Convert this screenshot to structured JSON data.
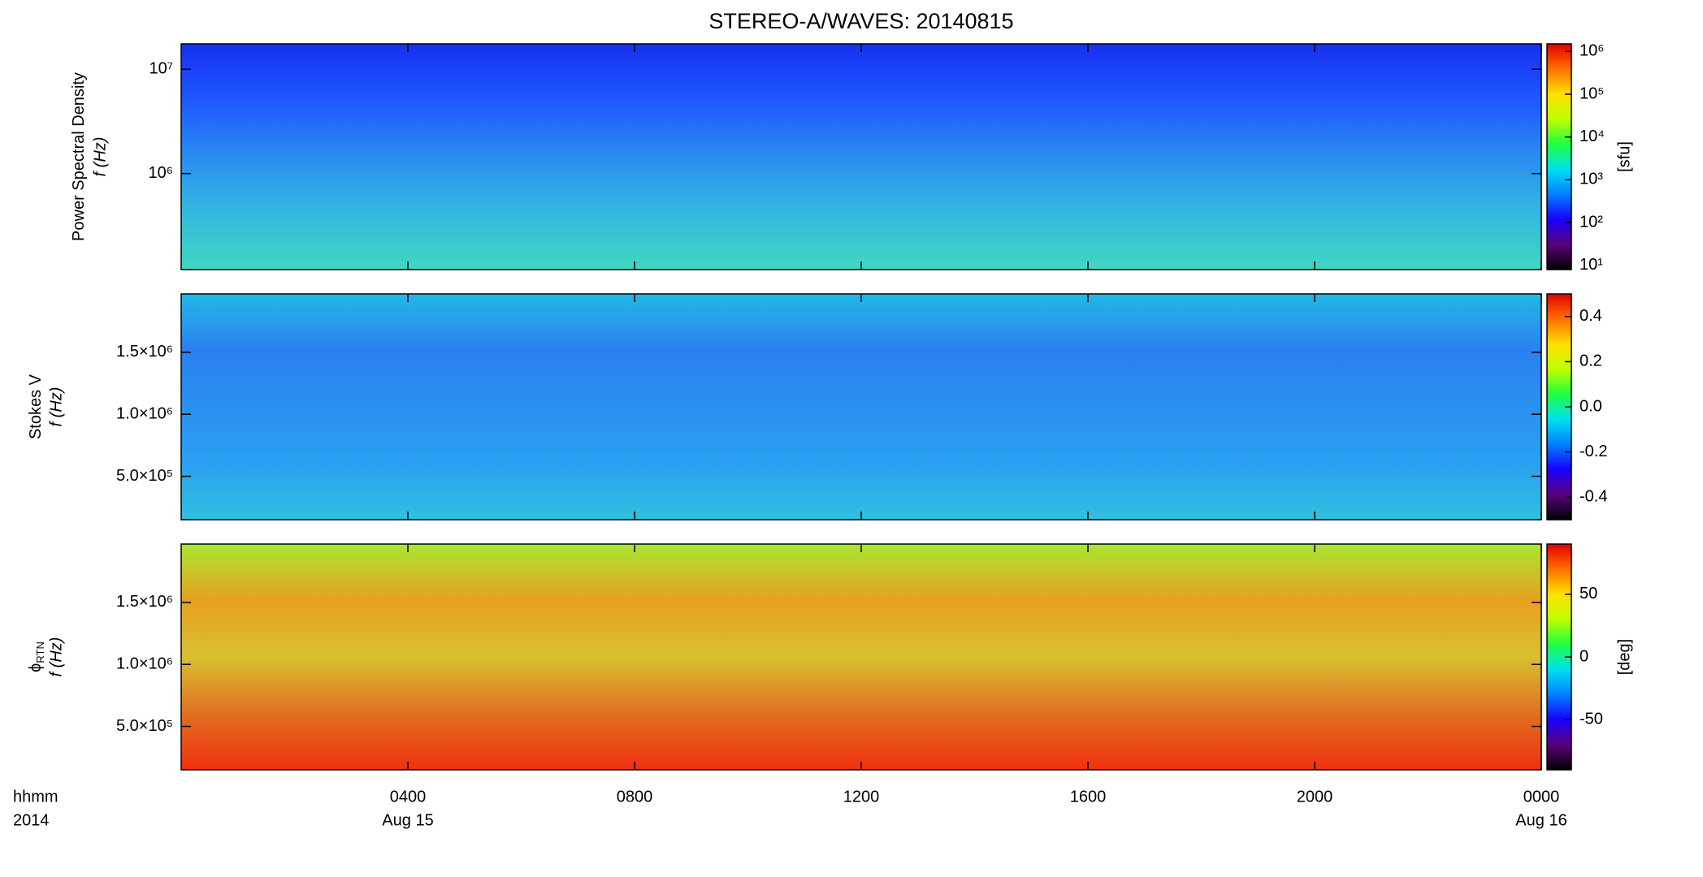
{
  "chart_data": {
    "type": "spectrogram",
    "title": "STEREO-A/WAVES: 20140815",
    "x_label": [
      "hhmm",
      "2014"
    ],
    "xlim": [
      0,
      24
    ],
    "xticks": [
      {
        "value": 4,
        "label": "0400"
      },
      {
        "value": 8,
        "label": "0800"
      },
      {
        "value": 12,
        "label": "1200"
      },
      {
        "value": 16,
        "label": "1600"
      },
      {
        "value": 20,
        "label": "2000"
      },
      {
        "value": 24,
        "label": "0000"
      }
    ],
    "x_sublabels": [
      {
        "value": 4,
        "label": "Aug 15"
      },
      {
        "value": 24,
        "label": "Aug 16"
      }
    ],
    "colormap": [
      "#000000",
      "#5a007a",
      "#1a00ff",
      "#0080ff",
      "#00e0f0",
      "#20ff40",
      "#c0ff00",
      "#ffe000",
      "#ff7000",
      "#e00000"
    ],
    "panels": [
      {
        "ylabel": "Power Spectral Density",
        "ylabel2": "f (Hz)",
        "yscale": "log",
        "ylim": [
          120000,
          17500000
        ],
        "yticks": [
          {
            "value": 1000000,
            "label": "10⁶"
          },
          {
            "value": 10000000,
            "label": "10⁷"
          }
        ],
        "cscale": "log",
        "clim": [
          8,
          1500000
        ],
        "cticks": [
          {
            "value": 10,
            "label": "10¹"
          },
          {
            "value": 100,
            "label": "10²"
          },
          {
            "value": 1000,
            "label": "10³"
          },
          {
            "value": 10000,
            "label": "10⁴"
          },
          {
            "value": 100000,
            "label": "10⁵"
          },
          {
            "value": 1000000,
            "label": "10⁶"
          }
        ],
        "clabel": "[sfu]",
        "fill": [
          "#1630f0",
          "#1e58ff",
          "#2a8cf0",
          "#34b8e0",
          "#40d8c0"
        ]
      },
      {
        "ylabel": "Stokes V",
        "ylabel2": "f (Hz)",
        "yscale": "linear",
        "ylim": [
          150000,
          1970000
        ],
        "yticks": [
          {
            "value": 500000,
            "label": "5.0×10⁵"
          },
          {
            "value": 1000000,
            "label": "1.0×10⁶"
          },
          {
            "value": 1500000,
            "label": "1.5×10⁶"
          }
        ],
        "cscale": "linear",
        "clim": [
          -0.5,
          0.5
        ],
        "cticks": [
          -0.4,
          -0.2,
          {
            "value": 0,
            "label": "0.0"
          },
          0.2,
          0.4
        ],
        "fill": [
          "#22b8e8",
          "#2a80f0",
          "#2a90f0",
          "#2aa0f0",
          "#30c0e0"
        ]
      },
      {
        "ylabel": "ϕ",
        "ylabel_sub": "RTN",
        "ylabel2": "f (Hz)",
        "yscale": "linear",
        "ylim": [
          150000,
          1970000
        ],
        "yticks": [
          {
            "value": 500000,
            "label": "5.0×10⁵"
          },
          {
            "value": 1000000,
            "label": "1.0×10⁶"
          },
          {
            "value": 1500000,
            "label": "1.5×10⁶"
          }
        ],
        "cscale": "linear",
        "clim": [
          -90,
          90
        ],
        "cticks": [
          -50,
          0,
          50
        ],
        "clabel": "[deg]",
        "fill": [
          "#a8e830",
          "#e8a020",
          "#d8c030",
          "#e07020",
          "#f03010"
        ]
      }
    ]
  }
}
